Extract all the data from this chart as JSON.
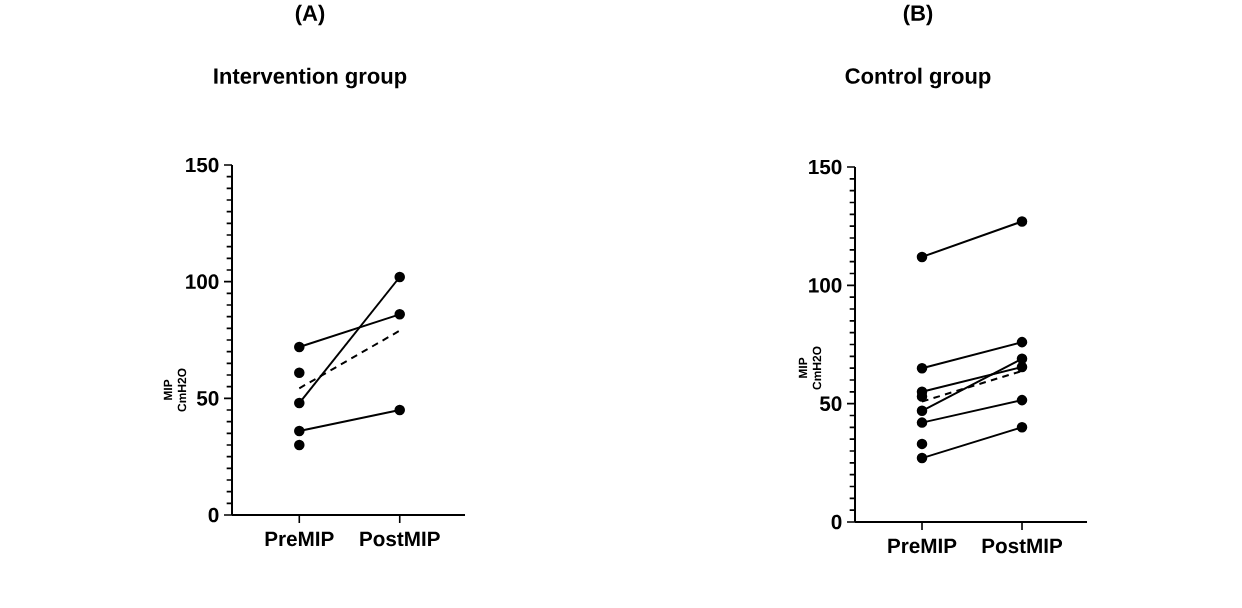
{
  "chart_data": [
    {
      "type": "line",
      "title": "(A)",
      "subtitle": "Intervention group",
      "ylabel": "MIP CmH2O",
      "categories": [
        "PreMIP",
        "PostMIP"
      ],
      "ylim": [
        0,
        150
      ],
      "yticks": [
        0,
        50,
        100,
        150
      ],
      "color": "#000000",
      "marker": "circle",
      "line_style": "solid",
      "series": [
        {
          "values": [
            72,
            86
          ]
        },
        {
          "values": [
            48,
            102
          ]
        },
        {
          "values": [
            36,
            45
          ]
        },
        {
          "type": "scatter",
          "values": [
            61,
            null
          ]
        },
        {
          "type": "scatter",
          "values": [
            30,
            null
          ]
        },
        {
          "type": "line",
          "values": [
            54.3,
            79
          ],
          "marker": "none",
          "line_style": "dashed"
        }
      ]
    },
    {
      "type": "line",
      "title": "(B)",
      "subtitle": "Control group",
      "ylabel": "MIP CmH2O",
      "categories": [
        "PreMIP",
        "PostMIP"
      ],
      "ylim": [
        0,
        150
      ],
      "yticks": [
        0,
        50,
        100,
        150
      ],
      "color": "#000000",
      "marker": "circle",
      "line_style": "solid",
      "series": [
        {
          "values": [
            112,
            127
          ]
        },
        {
          "values": [
            65,
            76
          ]
        },
        {
          "values": [
            55,
            65.5
          ]
        },
        {
          "values": [
            47,
            69
          ]
        },
        {
          "values": [
            42,
            51.5
          ]
        },
        {
          "values": [
            27,
            40
          ]
        },
        {
          "type": "scatter",
          "values": [
            53,
            null
          ]
        },
        {
          "type": "scatter",
          "values": [
            33,
            null
          ]
        },
        {
          "type": "line",
          "values": [
            50.9,
            63.8
          ],
          "marker": "none",
          "line_style": "dashed"
        }
      ]
    }
  ]
}
